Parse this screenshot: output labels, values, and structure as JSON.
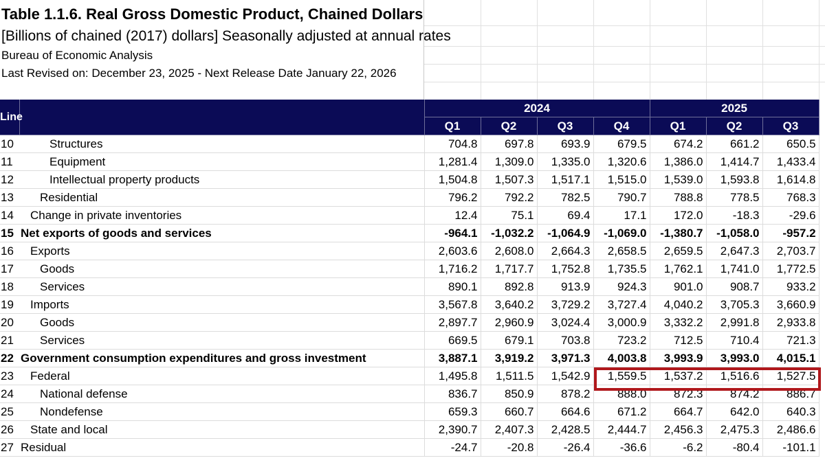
{
  "header": {
    "title": "Table 1.1.6. Real Gross Domestic Product, Chained Dollars",
    "subtitle": "[Billions of chained (2017) dollars] Seasonally adjusted at annual rates",
    "agency": "Bureau of Economic Analysis",
    "revised": "Last Revised on: December 23, 2025 - Next Release Date January 22, 2026"
  },
  "table": {
    "line_header": "Line",
    "years": [
      {
        "label": "2024",
        "span": 4
      },
      {
        "label": "2025",
        "span": 3
      }
    ],
    "quarters": [
      "Q1",
      "Q2",
      "Q3",
      "Q4",
      "Q1",
      "Q2",
      "Q3"
    ],
    "rows": [
      {
        "line": "10",
        "label": "Structures",
        "indent": 3,
        "bold": false,
        "values": [
          "704.8",
          "697.8",
          "693.9",
          "679.5",
          "674.2",
          "661.2",
          "650.5"
        ]
      },
      {
        "line": "11",
        "label": "Equipment",
        "indent": 3,
        "bold": false,
        "values": [
          "1,281.4",
          "1,309.0",
          "1,335.0",
          "1,320.6",
          "1,386.0",
          "1,414.7",
          "1,433.4"
        ]
      },
      {
        "line": "12",
        "label": "Intellectual property products",
        "indent": 3,
        "bold": false,
        "values": [
          "1,504.8",
          "1,507.3",
          "1,517.1",
          "1,515.0",
          "1,539.0",
          "1,593.8",
          "1,614.8"
        ]
      },
      {
        "line": "13",
        "label": "Residential",
        "indent": 2,
        "bold": false,
        "values": [
          "796.2",
          "792.2",
          "782.5",
          "790.7",
          "788.8",
          "778.5",
          "768.3"
        ]
      },
      {
        "line": "14",
        "label": "Change in private inventories",
        "indent": 1,
        "bold": false,
        "values": [
          "12.4",
          "75.1",
          "69.4",
          "17.1",
          "172.0",
          "-18.3",
          "-29.6"
        ]
      },
      {
        "line": "15",
        "label": "Net exports of goods and services",
        "indent": 0,
        "bold": true,
        "values": [
          "-964.1",
          "-1,032.2",
          "-1,064.9",
          "-1,069.0",
          "-1,380.7",
          "-1,058.0",
          "-957.2"
        ]
      },
      {
        "line": "16",
        "label": "Exports",
        "indent": 1,
        "bold": false,
        "values": [
          "2,603.6",
          "2,608.0",
          "2,664.3",
          "2,658.5",
          "2,659.5",
          "2,647.3",
          "2,703.7"
        ]
      },
      {
        "line": "17",
        "label": "Goods",
        "indent": 2,
        "bold": false,
        "values": [
          "1,716.2",
          "1,717.7",
          "1,752.8",
          "1,735.5",
          "1,762.1",
          "1,741.0",
          "1,772.5"
        ]
      },
      {
        "line": "18",
        "label": "Services",
        "indent": 2,
        "bold": false,
        "values": [
          "890.1",
          "892.8",
          "913.9",
          "924.3",
          "901.0",
          "908.7",
          "933.2"
        ]
      },
      {
        "line": "19",
        "label": "Imports",
        "indent": 1,
        "bold": false,
        "values": [
          "3,567.8",
          "3,640.2",
          "3,729.2",
          "3,727.4",
          "4,040.2",
          "3,705.3",
          "3,660.9"
        ]
      },
      {
        "line": "20",
        "label": "Goods",
        "indent": 2,
        "bold": false,
        "values": [
          "2,897.7",
          "2,960.9",
          "3,024.4",
          "3,000.9",
          "3,332.2",
          "2,991.8",
          "2,933.8"
        ]
      },
      {
        "line": "21",
        "label": "Services",
        "indent": 2,
        "bold": false,
        "values": [
          "669.5",
          "679.1",
          "703.8",
          "723.2",
          "712.5",
          "710.4",
          "721.3"
        ]
      },
      {
        "line": "22",
        "label": "Government consumption expenditures and gross investment",
        "indent": 0,
        "bold": true,
        "values": [
          "3,887.1",
          "3,919.2",
          "3,971.3",
          "4,003.8",
          "3,993.9",
          "3,993.0",
          "4,015.1"
        ]
      },
      {
        "line": "23",
        "label": "Federal",
        "indent": 1,
        "bold": false,
        "values": [
          "1,495.8",
          "1,511.5",
          "1,542.9",
          "1,559.5",
          "1,537.2",
          "1,516.6",
          "1,527.5"
        ]
      },
      {
        "line": "24",
        "label": "National defense",
        "indent": 2,
        "bold": false,
        "values": [
          "836.7",
          "850.9",
          "878.2",
          "888.0",
          "872.3",
          "874.2",
          "886.7"
        ]
      },
      {
        "line": "25",
        "label": "Nondefense",
        "indent": 2,
        "bold": false,
        "values": [
          "659.3",
          "660.7",
          "664.6",
          "671.2",
          "664.7",
          "642.0",
          "640.3"
        ]
      },
      {
        "line": "26",
        "label": "State and local",
        "indent": 1,
        "bold": false,
        "values": [
          "2,390.7",
          "2,407.3",
          "2,428.5",
          "2,444.7",
          "2,456.3",
          "2,475.3",
          "2,486.6"
        ]
      },
      {
        "line": "27",
        "label": "Residual",
        "indent": 0,
        "bold": false,
        "values": [
          "-24.7",
          "-20.8",
          "-26.4",
          "-36.6",
          "-6.2",
          "-80.4",
          "-101.1"
        ]
      }
    ]
  },
  "highlight_color": "#b0181c",
  "header_bg": "#0b0b56"
}
